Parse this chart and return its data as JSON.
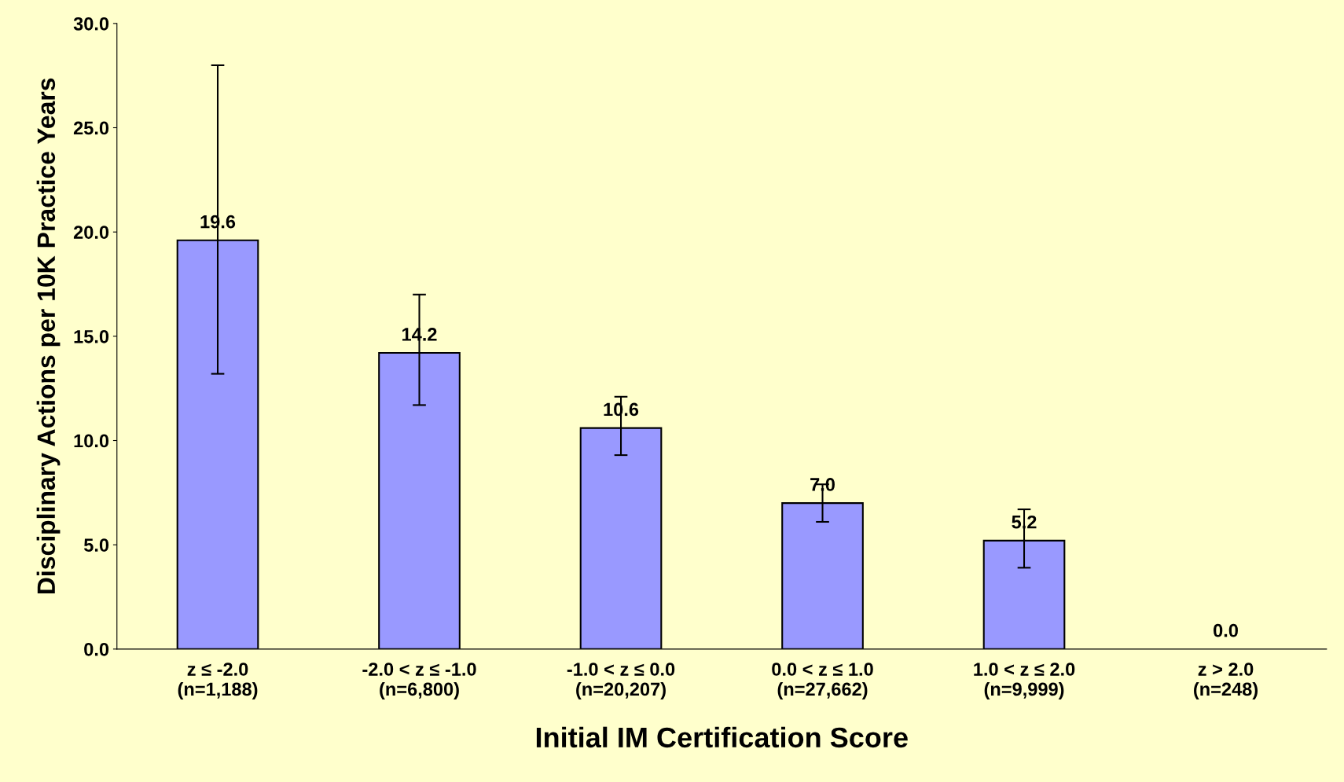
{
  "chart_data": {
    "type": "bar",
    "xlabel": "Initial IM Certification Score",
    "ylabel": "Disciplinary Actions per 10K Practice Years",
    "categories": [
      "z ≤ -2.0\n(n=1,188)",
      "-2.0 < z ≤ -1.0\n(n=6,800)",
      "-1.0 < z ≤ 0.0\n(n=20,207)",
      "0.0 < z ≤ 1.0\n(n=27,662)",
      "1.0 < z ≤ 2.0\n(n=9,999)",
      "z > 2.0\n(n=248)"
    ],
    "values": [
      19.6,
      14.2,
      10.6,
      7.0,
      5.2,
      0.0
    ],
    "errors": [
      [
        13.2,
        28.0
      ],
      [
        11.7,
        17.0
      ],
      [
        9.3,
        12.1
      ],
      [
        6.1,
        7.9
      ],
      [
        3.9,
        6.7
      ],
      null
    ],
    "color": "#9999ff",
    "ylim": [
      0,
      30
    ],
    "yticks": [
      {
        "value": 0,
        "label": "0.0"
      },
      {
        "value": 5,
        "label": "5.0"
      },
      {
        "value": 10,
        "label": "10.0"
      },
      {
        "value": 15,
        "label": "15.0"
      },
      {
        "value": 20,
        "label": "20.0"
      },
      {
        "value": 25,
        "label": "25.0"
      },
      {
        "value": 30,
        "label": "30.0"
      }
    ],
    "value_labels": [
      "19.6",
      "14.2",
      "10.6",
      "7.0",
      "5.2",
      "0.0"
    ],
    "grid": false
  }
}
